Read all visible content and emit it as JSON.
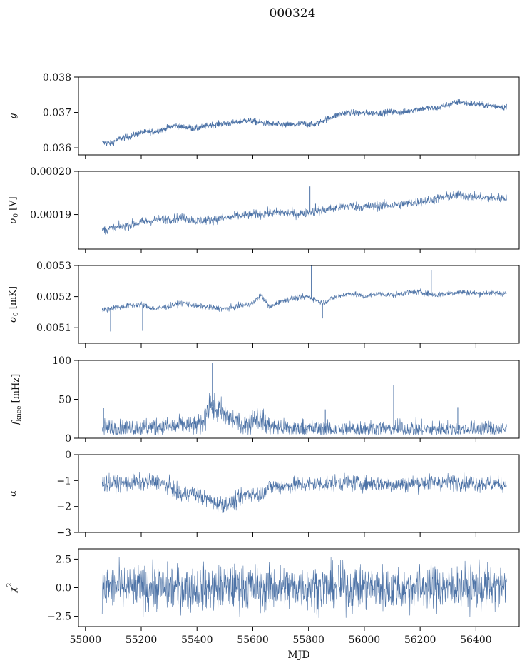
{
  "figure": {
    "suptitle": "000324",
    "xlabel": "MJD",
    "line_color": "#4c72a6",
    "x_ticks": [
      55000,
      55200,
      55400,
      55600,
      55800,
      56000,
      56200,
      56400
    ],
    "x_tick_labels": [
      "55000",
      "55200",
      "55400",
      "55600",
      "55800",
      "56000",
      "56200",
      "56400"
    ]
  },
  "chart_data": [
    {
      "type": "line",
      "ylabel_main": "g",
      "ylabel_sub": "",
      "xlim": [
        54975,
        56555
      ],
      "ylim": [
        0.0358,
        0.038
      ],
      "yticks": [
        0.036,
        0.037,
        0.038
      ],
      "ytick_labels": [
        "0.036",
        "0.037",
        "0.038"
      ],
      "xdata_range": [
        55060,
        56510
      ],
      "noise": 5e-05,
      "trend": {
        "x": [
          55060,
          55090,
          55120,
          55160,
          55200,
          55240,
          55280,
          55320,
          55360,
          55400,
          55450,
          55500,
          55540,
          55580,
          55620,
          55660,
          55700,
          55740,
          55780,
          55820,
          55860,
          55900,
          55940,
          55980,
          56020,
          56060,
          56100,
          56140,
          56180,
          56220,
          56260,
          56300,
          56340,
          56380,
          56420,
          56460,
          56510
        ],
        "y": [
          0.03615,
          0.03612,
          0.03625,
          0.03632,
          0.03643,
          0.03645,
          0.03652,
          0.03663,
          0.03658,
          0.03655,
          0.03665,
          0.03668,
          0.03672,
          0.03678,
          0.03672,
          0.03668,
          0.03665,
          0.03665,
          0.03668,
          0.03665,
          0.0368,
          0.03692,
          0.037,
          0.03698,
          0.03698,
          0.03698,
          0.03702,
          0.037,
          0.03708,
          0.03712,
          0.03712,
          0.03722,
          0.0373,
          0.03725,
          0.03722,
          0.03718,
          0.03715
        ]
      },
      "spikes": []
    },
    {
      "type": "line",
      "ylabel_main": "σ",
      "ylabel_sub": "0",
      "ylabel_unit": " [V]",
      "xlim": [
        54975,
        56555
      ],
      "ylim": [
        0.000182,
        0.0002
      ],
      "yticks": [
        0.00019,
        0.0002
      ],
      "ytick_labels": [
        "0.00019",
        "0.00020"
      ],
      "xdata_range": [
        55060,
        56510
      ],
      "noise": 5.5e-07,
      "trend": {
        "x": [
          55060,
          55100,
          55150,
          55200,
          55250,
          55300,
          55350,
          55400,
          55450,
          55500,
          55550,
          55600,
          55650,
          55700,
          55750,
          55800,
          55850,
          55900,
          55950,
          56000,
          56050,
          56100,
          56150,
          56200,
          56250,
          56300,
          56350,
          56400,
          56450,
          56510
        ],
        "y": [
          0.0001865,
          0.0001868,
          0.0001875,
          0.0001882,
          0.0001888,
          0.000189,
          0.0001893,
          0.0001885,
          0.0001888,
          0.0001892,
          0.0001897,
          0.00019,
          0.0001903,
          0.0001905,
          0.0001902,
          0.0001905,
          0.000191,
          0.0001915,
          0.000192,
          0.0001918,
          0.000192,
          0.0001922,
          0.0001925,
          0.000193,
          0.0001935,
          0.0001942,
          0.0001945,
          0.000194,
          0.0001938,
          0.0001938
        ]
      },
      "spikes": [
        {
          "x": 55805,
          "y": 0.0001965
        },
        {
          "x": 55825,
          "y": 0.0001925
        }
      ]
    },
    {
      "type": "line",
      "ylabel_main": "σ",
      "ylabel_sub": "0",
      "ylabel_unit": " [mK]",
      "xlim": [
        54975,
        56555
      ],
      "ylim": [
        0.00505,
        0.0053
      ],
      "yticks": [
        0.0051,
        0.0052,
        0.0053
      ],
      "ytick_labels": [
        "0.0051",
        "0.0052",
        "0.0053"
      ],
      "xdata_range": [
        55060,
        56510
      ],
      "noise": 4.8e-06,
      "trend": {
        "x": [
          55060,
          55100,
          55150,
          55200,
          55250,
          55300,
          55350,
          55400,
          55450,
          55500,
          55550,
          55600,
          55630,
          55660,
          55700,
          55750,
          55800,
          55850,
          55900,
          55950,
          56000,
          56050,
          56100,
          56150,
          56200,
          56250,
          56300,
          56350,
          56400,
          56450,
          56510
        ],
        "y": [
          0.005155,
          0.005165,
          0.00517,
          0.005175,
          0.00516,
          0.00517,
          0.00518,
          0.00517,
          0.005165,
          0.00516,
          0.00517,
          0.005178,
          0.005205,
          0.005165,
          0.005185,
          0.005195,
          0.0052,
          0.00518,
          0.0052,
          0.00521,
          0.0052,
          0.00521,
          0.005205,
          0.005212,
          0.005215,
          0.005205,
          0.00521,
          0.005215,
          0.00521,
          0.005212,
          0.00521
        ]
      },
      "spikes": [
        {
          "x": 55810,
          "y": 0.0053
        },
        {
          "x": 55850,
          "y": 0.00513
        },
        {
          "x": 56240,
          "y": 0.005285
        },
        {
          "x": 55090,
          "y": 0.005088
        },
        {
          "x": 55205,
          "y": 0.00509
        }
      ]
    },
    {
      "type": "line",
      "ylabel_main": "f",
      "ylabel_sub": "knee",
      "ylabel_unit": " [mHz]",
      "xlim": [
        54975,
        56555
      ],
      "ylim": [
        0,
        100
      ],
      "yticks": [
        0,
        50,
        100
      ],
      "ytick_labels": [
        "0",
        "50",
        "100"
      ],
      "xdata_range": [
        55060,
        56510
      ],
      "noise": 4.0,
      "trend": {
        "x": [
          55060,
          55150,
          55250,
          55350,
          55420,
          55440,
          55460,
          55500,
          55550,
          55580,
          55610,
          55650,
          55700,
          55800,
          55900,
          56000,
          56200,
          56400,
          56510
        ],
        "y": [
          13,
          13,
          14,
          16,
          17,
          45,
          40,
          30,
          20,
          16,
          28,
          18,
          13,
          12,
          11,
          12,
          11,
          11,
          11
        ]
      },
      "spikes": [
        {
          "x": 55065,
          "y": 39
        },
        {
          "x": 55455,
          "y": 97
        },
        {
          "x": 56105,
          "y": 68
        },
        {
          "x": 55860,
          "y": 37
        },
        {
          "x": 56335,
          "y": 40
        }
      ]
    },
    {
      "type": "line",
      "ylabel_main": "α",
      "ylabel_sub": "",
      "ylabel_unit": "",
      "xlim": [
        54975,
        56555
      ],
      "ylim": [
        -3,
        0
      ],
      "yticks": [
        -3,
        -2,
        -1,
        0
      ],
      "ytick_labels": [
        "−3",
        "−2",
        "−1",
        "0"
      ],
      "xdata_range": [
        55060,
        56510
      ],
      "noise": 0.16,
      "trend": {
        "x": [
          55060,
          55150,
          55250,
          55300,
          55340,
          55380,
          55420,
          55460,
          55500,
          55540,
          55580,
          55620,
          55660,
          55720,
          55800,
          55900,
          56000,
          56100,
          56200,
          56300,
          56400,
          56510
        ],
        "y": [
          -1.1,
          -1.1,
          -1.05,
          -1.2,
          -1.6,
          -1.45,
          -1.65,
          -1.85,
          -1.9,
          -1.8,
          -1.5,
          -1.55,
          -1.25,
          -1.2,
          -1.15,
          -1.1,
          -1.1,
          -1.15,
          -1.1,
          -1.05,
          -1.1,
          -1.15
        ]
      },
      "spikes": []
    },
    {
      "type": "line",
      "ylabel_main": "χ",
      "ylabel_sub": "",
      "ylabel_sup": "2",
      "ylabel_unit": "",
      "xlim": [
        54975,
        56555
      ],
      "ylim": [
        -3.4,
        3.4
      ],
      "yticks": [
        -2.5,
        0.0,
        2.5
      ],
      "ytick_labels": [
        "−2.5",
        "0.0",
        "2.5"
      ],
      "xdata_range": [
        55060,
        56510
      ],
      "noise": 1.0,
      "trend": {
        "x": [
          55060,
          56510
        ],
        "y": [
          0,
          0
        ]
      },
      "spikes": []
    }
  ]
}
